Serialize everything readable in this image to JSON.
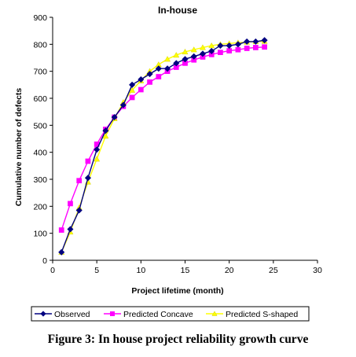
{
  "chart_data": {
    "type": "line",
    "title": "In-house",
    "xlabel": "Project lifetime (month)",
    "ylabel": "Cumulative number of defects",
    "xlim": [
      0,
      30
    ],
    "ylim": [
      0,
      900
    ],
    "xticks": [
      0,
      5,
      10,
      15,
      20,
      25,
      30
    ],
    "yticks": [
      0,
      100,
      200,
      300,
      400,
      500,
      600,
      700,
      800,
      900
    ],
    "grid": false,
    "legend_position": "bottom",
    "series": [
      {
        "name": "Observed",
        "color": "#000080",
        "marker": "diamond",
        "x": [
          1,
          2,
          3,
          4,
          5,
          6,
          7,
          8,
          9,
          10,
          11,
          12,
          13,
          14,
          15,
          16,
          17,
          18,
          19,
          20,
          21,
          22,
          23,
          24
        ],
        "y": [
          30,
          115,
          185,
          305,
          410,
          480,
          530,
          575,
          650,
          670,
          690,
          710,
          710,
          730,
          745,
          755,
          765,
          775,
          795,
          795,
          800,
          810,
          810,
          815
        ]
      },
      {
        "name": "Predicted Concave",
        "color": "#ff00ff",
        "marker": "square",
        "x": [
          1,
          2,
          3,
          4,
          5,
          6,
          7,
          8,
          9,
          10,
          11,
          12,
          13,
          14,
          15,
          16,
          17,
          18,
          19,
          20,
          21,
          22,
          23,
          24
        ],
        "y": [
          112,
          210,
          295,
          367,
          430,
          485,
          530,
          570,
          603,
          632,
          660,
          680,
          700,
          715,
          730,
          742,
          753,
          762,
          770,
          776,
          780,
          785,
          788,
          790
        ]
      },
      {
        "name": "Predicted S-shaped",
        "color": "#ffff00",
        "marker": "triangle",
        "x": [
          1,
          2,
          3,
          4,
          5,
          6,
          7,
          8,
          9,
          10,
          11,
          12,
          13,
          14,
          15,
          16,
          17,
          18,
          19,
          20,
          21,
          22,
          23,
          24
        ],
        "y": [
          30,
          105,
          195,
          290,
          375,
          460,
          525,
          585,
          630,
          665,
          700,
          725,
          745,
          760,
          772,
          780,
          788,
          795,
          800,
          803,
          806,
          808,
          810,
          811
        ]
      }
    ]
  },
  "caption": "Figure 3: In house project reliability growth curve"
}
